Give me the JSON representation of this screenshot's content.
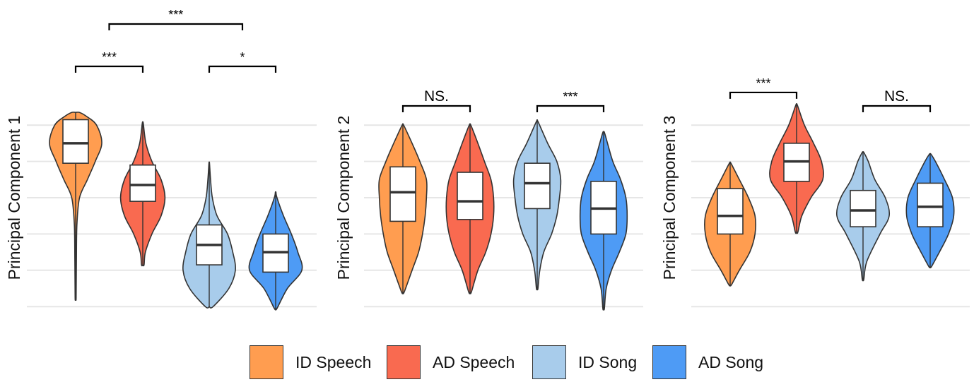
{
  "colors": {
    "ID Speech": "#FF9D50",
    "AD Speech": "#F96A50",
    "ID Song": "#A8CCEB",
    "AD Song": "#4E9BF5",
    "outline": "#333333",
    "grid": "#E6E6E6"
  },
  "legend": {
    "items": [
      {
        "label": "ID Speech",
        "color": "#FF9D50"
      },
      {
        "label": "AD Speech",
        "color": "#F96A50"
      },
      {
        "label": "ID Song",
        "color": "#A8CCEB"
      },
      {
        "label": "AD Song",
        "color": "#4E9BF5"
      }
    ]
  },
  "chart_data": [
    {
      "type": "violin",
      "ylabel": "Principal Component 1",
      "categories": [
        "ID Speech",
        "AD Speech",
        "ID Song",
        "AD Song"
      ],
      "ylim": [
        -6.5,
        6.5
      ],
      "gridlines": [
        -6,
        -4,
        -2,
        0,
        2,
        4
      ],
      "violins": [
        {
          "name": "ID Speech",
          "min": -5.5,
          "max": 4.7,
          "q1": 1.9,
          "median": 3.0,
          "q3": 4.3,
          "profile": [
            [
              -5.5,
              0.02
            ],
            [
              -3.5,
              0.03
            ],
            [
              -1.5,
              0.05
            ],
            [
              0,
              0.15
            ],
            [
              1,
              0.45
            ],
            [
              2,
              0.75
            ],
            [
              3,
              1.0
            ],
            [
              4,
              0.8
            ],
            [
              4.5,
              0.4
            ],
            [
              4.7,
              0.15
            ]
          ]
        },
        {
          "name": "AD Speech",
          "min": -3.7,
          "max": 4.1,
          "q1": -0.2,
          "median": 0.7,
          "q3": 1.8,
          "profile": [
            [
              -3.7,
              0.05
            ],
            [
              -3,
              0.1
            ],
            [
              -2,
              0.35
            ],
            [
              -1,
              0.7
            ],
            [
              0,
              0.85
            ],
            [
              1,
              0.7
            ],
            [
              2,
              0.35
            ],
            [
              3,
              0.12
            ],
            [
              4.1,
              0.02
            ]
          ]
        },
        {
          "name": "ID Song",
          "min": -6.0,
          "max": 1.9,
          "q1": -3.7,
          "median": -2.6,
          "q3": -1.5,
          "profile": [
            [
              -6,
              0.15
            ],
            [
              -5,
              0.75
            ],
            [
              -4,
              1.0
            ],
            [
              -3,
              0.9
            ],
            [
              -2,
              0.7
            ],
            [
              -1,
              0.3
            ],
            [
              0,
              0.12
            ],
            [
              1,
              0.05
            ],
            [
              1.9,
              0.01
            ]
          ]
        },
        {
          "name": "AD Song",
          "min": -6.1,
          "max": 0.3,
          "q1": -4.1,
          "median": -3.0,
          "q3": -2.0,
          "profile": [
            [
              -6.1,
              0.05
            ],
            [
              -5,
              0.45
            ],
            [
              -4,
              1.0
            ],
            [
              -3,
              0.85
            ],
            [
              -2,
              0.6
            ],
            [
              -1,
              0.3
            ],
            [
              0,
              0.05
            ],
            [
              0.3,
              0.01
            ]
          ]
        }
      ],
      "brackets": [
        {
          "from": "ID Speech",
          "to": "AD Speech",
          "label": "***",
          "level": 1
        },
        {
          "from": "ID Song",
          "to": "AD Song",
          "label": "*",
          "level": 1
        },
        {
          "from": "ID Speech",
          "to": "ID Song",
          "label": "***",
          "level": 2,
          "between_pair_centers": true
        }
      ]
    },
    {
      "type": "violin",
      "ylabel": "Principal Component 2",
      "categories": [
        "ID Speech",
        "AD Speech",
        "ID Song",
        "AD Song"
      ],
      "ylim": [
        -6.5,
        6.5
      ],
      "gridlines": [
        -6,
        -4,
        -2,
        0,
        2,
        4
      ],
      "violins": [
        {
          "name": "ID Speech",
          "min": -5.2,
          "max": 4.0,
          "q1": -1.3,
          "median": 0.3,
          "q3": 1.7,
          "profile": [
            [
              -5.2,
              0.05
            ],
            [
              -4,
              0.35
            ],
            [
              -3,
              0.6
            ],
            [
              -2,
              0.75
            ],
            [
              -1,
              0.85
            ],
            [
              0,
              0.9
            ],
            [
              1,
              0.9
            ],
            [
              2,
              0.65
            ],
            [
              3,
              0.35
            ],
            [
              4,
              0.03
            ]
          ]
        },
        {
          "name": "AD Speech",
          "min": -5.2,
          "max": 4.0,
          "q1": -1.2,
          "median": -0.2,
          "q3": 1.4,
          "profile": [
            [
              -5.2,
              0.05
            ],
            [
              -4,
              0.3
            ],
            [
              -3,
              0.6
            ],
            [
              -2,
              0.8
            ],
            [
              -1,
              0.9
            ],
            [
              0,
              0.9
            ],
            [
              1,
              0.8
            ],
            [
              2,
              0.55
            ],
            [
              3,
              0.3
            ],
            [
              4,
              0.03
            ]
          ]
        },
        {
          "name": "ID Song",
          "min": -5.0,
          "max": 4.2,
          "q1": -0.6,
          "median": 0.8,
          "q3": 1.9,
          "profile": [
            [
              -5,
              0.03
            ],
            [
              -4,
              0.1
            ],
            [
              -3,
              0.25
            ],
            [
              -2,
              0.55
            ],
            [
              -1,
              0.75
            ],
            [
              0,
              0.85
            ],
            [
              1,
              0.9
            ],
            [
              2,
              0.75
            ],
            [
              3,
              0.4
            ],
            [
              4.2,
              0.03
            ]
          ]
        },
        {
          "name": "AD Song",
          "min": -6.1,
          "max": 3.6,
          "q1": -2.0,
          "median": -0.6,
          "q3": 0.9,
          "profile": [
            [
              -6.1,
              0.03
            ],
            [
              -5,
              0.1
            ],
            [
              -4,
              0.3
            ],
            [
              -3,
              0.6
            ],
            [
              -2,
              0.85
            ],
            [
              -1,
              0.9
            ],
            [
              0,
              0.85
            ],
            [
              1,
              0.65
            ],
            [
              2,
              0.35
            ],
            [
              3,
              0.15
            ],
            [
              3.6,
              0.03
            ]
          ]
        }
      ],
      "brackets": [
        {
          "from": "ID Speech",
          "to": "AD Speech",
          "label": "NS.",
          "level": 1
        },
        {
          "from": "ID Song",
          "to": "AD Song",
          "label": "***",
          "level": 1
        }
      ]
    },
    {
      "type": "violin",
      "ylabel": "Principal Component 3",
      "categories": [
        "ID Speech",
        "AD Speech",
        "ID Song",
        "AD Song"
      ],
      "ylim": [
        -6.5,
        6.5
      ],
      "gridlines": [
        -6,
        -4,
        -2,
        0,
        2,
        4
      ],
      "violins": [
        {
          "name": "ID Speech",
          "min": -4.8,
          "max": 1.9,
          "q1": -2.0,
          "median": -1.0,
          "q3": 0.5,
          "profile": [
            [
              -4.8,
              0.05
            ],
            [
              -4,
              0.35
            ],
            [
              -3,
              0.75
            ],
            [
              -2,
              0.95
            ],
            [
              -1,
              0.95
            ],
            [
              0,
              0.7
            ],
            [
              1,
              0.35
            ],
            [
              1.9,
              0.03
            ]
          ]
        },
        {
          "name": "AD Speech",
          "min": -1.9,
          "max": 5.1,
          "q1": 0.9,
          "median": 2.0,
          "q3": 3.0,
          "profile": [
            [
              -1.9,
              0.05
            ],
            [
              -1,
              0.2
            ],
            [
              0,
              0.55
            ],
            [
              1,
              1.0
            ],
            [
              2,
              0.95
            ],
            [
              3,
              0.65
            ],
            [
              4,
              0.3
            ],
            [
              5.1,
              0.03
            ]
          ]
        },
        {
          "name": "ID Song",
          "min": -4.5,
          "max": 2.5,
          "q1": -1.6,
          "median": -0.7,
          "q3": 0.4,
          "profile": [
            [
              -4.5,
              0.03
            ],
            [
              -3.5,
              0.15
            ],
            [
              -2,
              0.65
            ],
            [
              -1,
              1.0
            ],
            [
              0,
              0.85
            ],
            [
              1,
              0.45
            ],
            [
              2,
              0.2
            ],
            [
              2.5,
              0.03
            ]
          ]
        },
        {
          "name": "AD Song",
          "min": -3.8,
          "max": 2.4,
          "q1": -1.6,
          "median": -0.5,
          "q3": 0.8,
          "profile": [
            [
              -3.8,
              0.05
            ],
            [
              -3,
              0.35
            ],
            [
              -2,
              0.7
            ],
            [
              -1,
              0.9
            ],
            [
              0,
              0.85
            ],
            [
              1,
              0.55
            ],
            [
              2,
              0.2
            ],
            [
              2.4,
              0.03
            ]
          ]
        }
      ],
      "brackets": [
        {
          "from": "ID Speech",
          "to": "AD Speech",
          "label": "***",
          "level": 1
        },
        {
          "from": "ID Song",
          "to": "AD Song",
          "label": "NS.",
          "level": 1
        }
      ]
    }
  ]
}
